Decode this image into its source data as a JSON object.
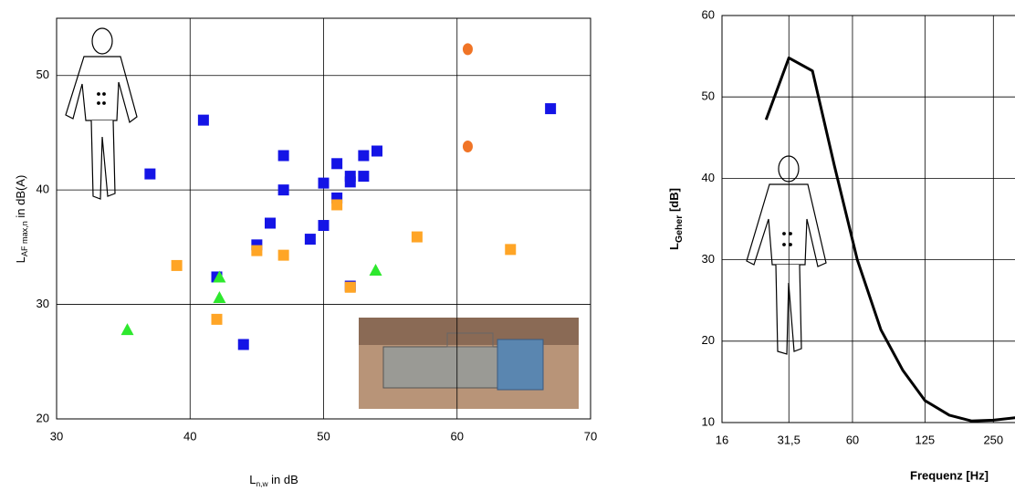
{
  "chart_data": [
    {
      "type": "scatter",
      "y_label": {
        "main": "L",
        "sub": "AF max,n",
        "rest": " in dB(A)"
      },
      "x_label": {
        "main": "L",
        "sub": "n,w",
        "rest": "  in dB"
      },
      "xlim": [
        30,
        70
      ],
      "xticks": [
        30,
        40,
        50,
        60,
        70
      ],
      "ylim": [
        20,
        55
      ],
      "yticks": [
        20,
        30,
        40,
        50
      ],
      "grid": true,
      "series": [
        {
          "color": "#1414e6",
          "marker": "square",
          "x": [
            37,
            41,
            42,
            44,
            45,
            46,
            47,
            47,
            49,
            50,
            50,
            51,
            51,
            52,
            52,
            52,
            53,
            53,
            54,
            67
          ],
          "values": [
            41.4,
            46.1,
            32.4,
            26.5,
            35.2,
            37.1,
            43,
            40,
            35.7,
            40.6,
            36.9,
            42.3,
            39.3,
            41.2,
            40.7,
            31.6,
            43,
            41.2,
            43.4,
            47.1
          ]
        },
        {
          "color": "#ffa526",
          "marker": "square",
          "x": [
            39,
            42,
            45,
            47,
            51,
            52,
            57,
            64
          ],
          "values": [
            33.4,
            28.7,
            34.7,
            34.3,
            38.7,
            31.5,
            35.9,
            34.8
          ]
        },
        {
          "color": "#2ee82e",
          "marker": "triangle",
          "x": [
            35.3,
            42.2,
            42.2,
            53.9
          ],
          "values": [
            27.8,
            32.4,
            30.6,
            33
          ]
        },
        {
          "color": "#f07426",
          "marker": "circle",
          "x": [
            60.8,
            60.8
          ],
          "values": [
            52.3,
            43.8
          ]
        }
      ]
    },
    {
      "type": "line",
      "y_label": {
        "main": "L",
        "sub": "Geher",
        "rest": " [dB]"
      },
      "x_label": "Frequenz [Hz]",
      "log_x": true,
      "xlim": [
        16,
        320
      ],
      "xticks": [
        16,
        {
          "value": 31.5,
          "label": "31,5"
        },
        60,
        125,
        250
      ],
      "ylim": [
        10,
        60
      ],
      "yticks": [
        10,
        20,
        30,
        40,
        50,
        60
      ],
      "grid": true,
      "x": [
        25,
        31.5,
        40,
        50,
        63,
        80,
        100,
        125,
        160,
        200,
        250,
        315
      ],
      "series": [
        {
          "color": "#000000",
          "values": [
            47.2,
            54.8,
            53.2,
            41.5,
            30,
            21.4,
            16.4,
            12.7,
            10.9,
            10.2,
            10.3,
            10.6
          ]
        }
      ]
    }
  ]
}
